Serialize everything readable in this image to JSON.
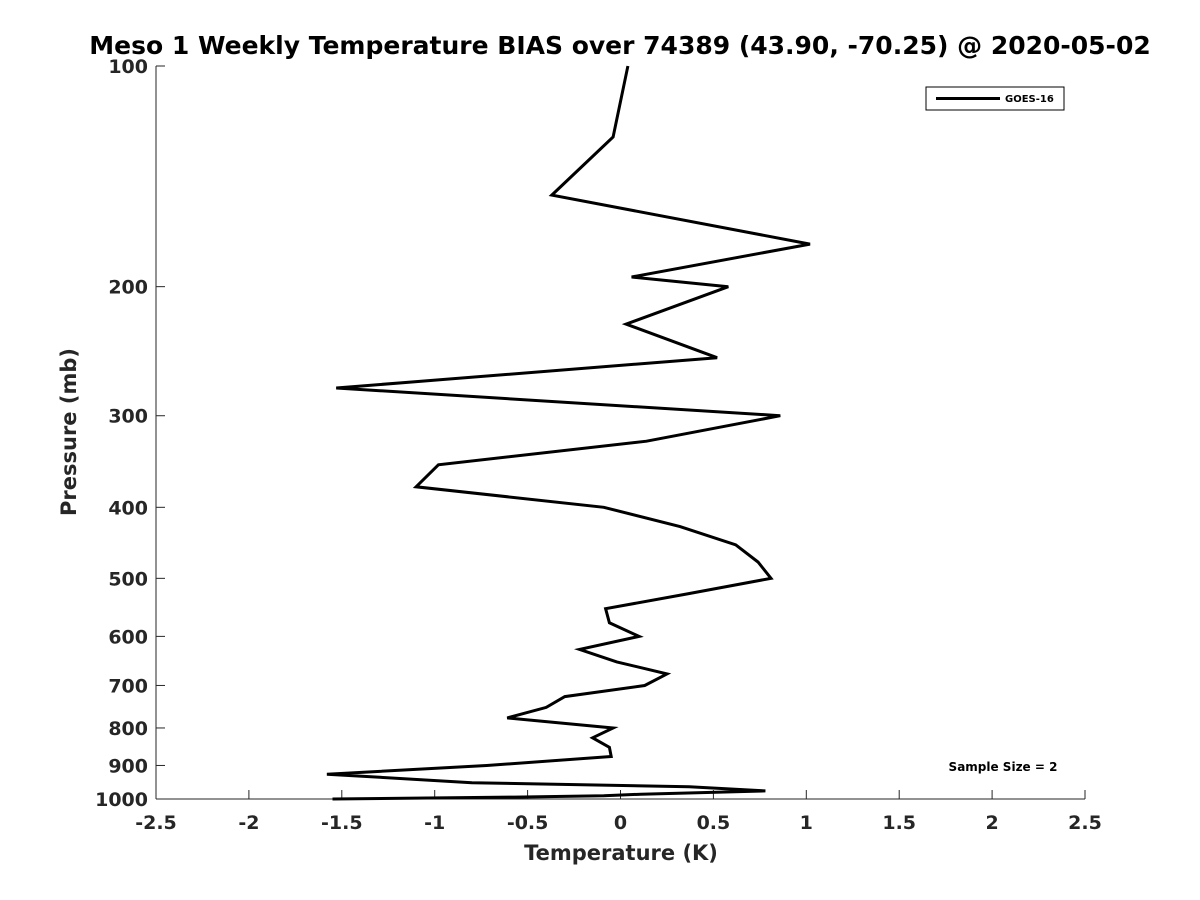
{
  "chart_data": {
    "type": "line",
    "title": "Meso 1 Weekly Temperature BIAS over 74389 (43.90, -70.25) @ 2020-05-02",
    "xlabel": "Temperature (K)",
    "ylabel": "Pressure (mb)",
    "xlim": [
      -2.5,
      2.5
    ],
    "ylim": [
      1000,
      100
    ],
    "y_scale": "log",
    "y_reversed": true,
    "grid": false,
    "x_ticks": [
      "-2.5",
      "-2",
      "-1.5",
      "-1",
      "-0.5",
      "0",
      "0.5",
      "1",
      "1.5",
      "2",
      "2.5"
    ],
    "x_tick_values": [
      -2.5,
      -2,
      -1.5,
      -1,
      -0.5,
      0,
      0.5,
      1,
      1.5,
      2,
      2.5
    ],
    "y_ticks": [
      "100",
      "200",
      "300",
      "400",
      "500",
      "600",
      "700",
      "800",
      "900",
      "1000"
    ],
    "y_tick_values": [
      100,
      200,
      300,
      400,
      500,
      600,
      700,
      800,
      900,
      1000
    ],
    "legend_position": "top-right",
    "annotation": "Sample Size = 2",
    "series": [
      {
        "name": "GOES-16",
        "color": "#000000",
        "points": [
          [
            0.04,
            100
          ],
          [
            -0.04,
            125
          ],
          [
            -0.37,
            150
          ],
          [
            1.02,
            175
          ],
          [
            0.06,
            194
          ],
          [
            0.58,
            200
          ],
          [
            0.03,
            225
          ],
          [
            0.52,
            250
          ],
          [
            -1.53,
            275
          ],
          [
            0.86,
            300
          ],
          [
            0.14,
            325
          ],
          [
            -0.98,
            350
          ],
          [
            -1.1,
            375
          ],
          [
            -0.09,
            400
          ],
          [
            0.32,
            425
          ],
          [
            0.62,
            450
          ],
          [
            0.74,
            475
          ],
          [
            0.81,
            500
          ],
          [
            0.36,
            525
          ],
          [
            -0.08,
            550
          ],
          [
            -0.06,
            575
          ],
          [
            0.1,
            600
          ],
          [
            -0.22,
            625
          ],
          [
            -0.02,
            650
          ],
          [
            0.25,
            675
          ],
          [
            0.13,
            700
          ],
          [
            -0.3,
            725
          ],
          [
            -0.4,
            750
          ],
          [
            -0.61,
            775
          ],
          [
            -0.04,
            800
          ],
          [
            -0.15,
            825
          ],
          [
            -0.06,
            850
          ],
          [
            -0.05,
            875
          ],
          [
            -0.72,
            900
          ],
          [
            -1.58,
            925
          ],
          [
            -0.8,
            950
          ],
          [
            0.37,
            962
          ],
          [
            0.78,
            975
          ],
          [
            0.11,
            985
          ],
          [
            -0.09,
            990
          ],
          [
            -0.57,
            994
          ],
          [
            -1.55,
            1000
          ]
        ]
      }
    ]
  }
}
